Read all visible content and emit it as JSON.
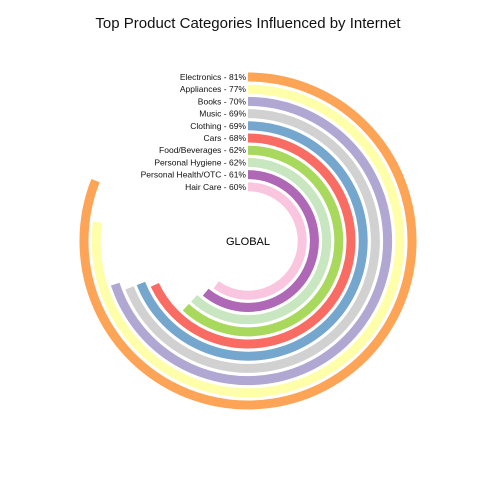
{
  "chart_data": {
    "type": "radial-bar",
    "title": "Top Product Categories Influenced by Internet",
    "center_label": "GLOBAL",
    "max_value": 100,
    "categories": [
      {
        "label": "Electronics - 81%",
        "name": "Electronics",
        "value": 81,
        "color": "#FDA456"
      },
      {
        "label": "Appliances - 77%",
        "name": "Appliances",
        "value": 77,
        "color": "#FEFFA8"
      },
      {
        "label": "Books - 70%",
        "name": "Books",
        "value": 70,
        "color": "#B0A7D2"
      },
      {
        "label": "Music - 69%",
        "name": "Music",
        "value": 69,
        "color": "#D1D1D1"
      },
      {
        "label": "Clothing - 69%",
        "name": "Clothing",
        "value": 69,
        "color": "#75A7CE"
      },
      {
        "label": "Cars - 68%",
        "name": "Cars",
        "value": 68,
        "color": "#F86C63"
      },
      {
        "label": "Food/Beverages - 62%",
        "name": "Food/Beverages",
        "value": 62,
        "color": "#A8D85C"
      },
      {
        "label": "Personal Hygiene - 62%",
        "name": "Personal Hygiene",
        "value": 62,
        "color": "#C8E6C0"
      },
      {
        "label": "Personal Health/OTC - 61%",
        "name": "Personal Health/OTC",
        "value": 61,
        "color": "#AE68B5"
      },
      {
        "label": "Hair Care - 60%",
        "name": "Hair Care",
        "value": 60,
        "color": "#FAC6DF"
      }
    ]
  }
}
